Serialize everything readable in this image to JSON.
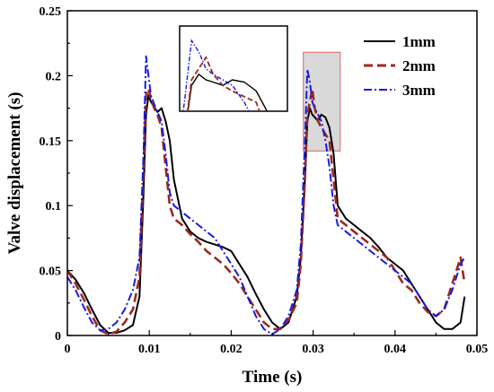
{
  "chart_data": {
    "type": "line",
    "xlabel": "Time (s)",
    "ylabel": "Valve displacement (s)",
    "xlim": [
      0,
      0.05
    ],
    "ylim": [
      0,
      0.25
    ],
    "xticks": [
      "0",
      "0.01",
      "0.02",
      "0.03",
      "0.04",
      "0.05"
    ],
    "yticks": [
      "0",
      "0.05",
      "0.1",
      "0.15",
      "0.2",
      "0.25"
    ],
    "grid": false,
    "legend_position": "top-right",
    "highlight_region": {
      "x": [
        0.0288,
        0.0333
      ],
      "y": [
        0.142,
        0.218
      ]
    },
    "series": [
      {
        "name": "1mm",
        "color": "#000000",
        "dash": "solid",
        "x": [
          0,
          0.001,
          0.002,
          0.003,
          0.004,
          0.005,
          0.006,
          0.007,
          0.008,
          0.0088,
          0.0093,
          0.0096,
          0.0099,
          0.0102,
          0.0106,
          0.011,
          0.0115,
          0.012,
          0.0125,
          0.013,
          0.014,
          0.015,
          0.016,
          0.017,
          0.018,
          0.019,
          0.02,
          0.021,
          0.022,
          0.023,
          0.024,
          0.025,
          0.026,
          0.027,
          0.028,
          0.0285,
          0.029,
          0.0293,
          0.0296,
          0.0299,
          0.0302,
          0.0306,
          0.031,
          0.0315,
          0.032,
          0.0325,
          0.033,
          0.034,
          0.035,
          0.036,
          0.037,
          0.038,
          0.039,
          0.04,
          0.041,
          0.042,
          0.043,
          0.044,
          0.045,
          0.046,
          0.047,
          0.048,
          0.0485
        ],
        "y": [
          0.05,
          0.043,
          0.033,
          0.02,
          0.008,
          0.002,
          0.002,
          0.004,
          0.008,
          0.03,
          0.11,
          0.17,
          0.185,
          0.18,
          0.176,
          0.172,
          0.175,
          0.165,
          0.15,
          0.12,
          0.09,
          0.08,
          0.075,
          0.072,
          0.07,
          0.068,
          0.065,
          0.055,
          0.045,
          0.032,
          0.02,
          0.01,
          0.005,
          0.01,
          0.03,
          0.06,
          0.12,
          0.165,
          0.175,
          0.17,
          0.168,
          0.165,
          0.17,
          0.168,
          0.16,
          0.14,
          0.1,
          0.09,
          0.085,
          0.08,
          0.075,
          0.068,
          0.06,
          0.055,
          0.05,
          0.04,
          0.03,
          0.02,
          0.01,
          0.005,
          0.005,
          0.01,
          0.03
        ]
      },
      {
        "name": "2mm",
        "color": "#9c2a1f",
        "dash": "long",
        "x": [
          0,
          0.001,
          0.002,
          0.003,
          0.004,
          0.005,
          0.006,
          0.007,
          0.008,
          0.0088,
          0.0093,
          0.0096,
          0.0099,
          0.0102,
          0.0106,
          0.011,
          0.0115,
          0.012,
          0.0125,
          0.013,
          0.014,
          0.015,
          0.016,
          0.017,
          0.018,
          0.019,
          0.02,
          0.021,
          0.022,
          0.023,
          0.024,
          0.025,
          0.026,
          0.027,
          0.028,
          0.0285,
          0.029,
          0.0293,
          0.0296,
          0.0299,
          0.0302,
          0.0306,
          0.031,
          0.0315,
          0.032,
          0.0325,
          0.033,
          0.034,
          0.035,
          0.036,
          0.037,
          0.038,
          0.039,
          0.04,
          0.041,
          0.042,
          0.043,
          0.044,
          0.045,
          0.046,
          0.047,
          0.048,
          0.0485
        ],
        "y": [
          0.05,
          0.04,
          0.028,
          0.015,
          0.004,
          0.001,
          0.003,
          0.01,
          0.02,
          0.045,
          0.13,
          0.185,
          0.19,
          0.182,
          0.175,
          0.17,
          0.16,
          0.13,
          0.1,
          0.09,
          0.085,
          0.078,
          0.072,
          0.065,
          0.06,
          0.055,
          0.048,
          0.04,
          0.03,
          0.02,
          0.01,
          0.005,
          0.005,
          0.012,
          0.025,
          0.055,
          0.12,
          0.17,
          0.18,
          0.19,
          0.175,
          0.165,
          0.16,
          0.155,
          0.15,
          0.12,
          0.09,
          0.085,
          0.08,
          0.075,
          0.07,
          0.065,
          0.06,
          0.05,
          0.04,
          0.035,
          0.025,
          0.018,
          0.015,
          0.02,
          0.04,
          0.06,
          0.04
        ]
      },
      {
        "name": "3mm",
        "color": "#1a1adf",
        "dash": "dashdot",
        "x": [
          0,
          0.001,
          0.002,
          0.003,
          0.004,
          0.005,
          0.006,
          0.007,
          0.008,
          0.0088,
          0.0093,
          0.0096,
          0.0099,
          0.0102,
          0.0106,
          0.011,
          0.0115,
          0.012,
          0.0125,
          0.013,
          0.014,
          0.015,
          0.016,
          0.017,
          0.018,
          0.019,
          0.02,
          0.021,
          0.022,
          0.023,
          0.024,
          0.025,
          0.026,
          0.027,
          0.028,
          0.0285,
          0.029,
          0.0293,
          0.0296,
          0.0299,
          0.0302,
          0.0306,
          0.031,
          0.0315,
          0.032,
          0.0325,
          0.033,
          0.034,
          0.035,
          0.036,
          0.037,
          0.038,
          0.039,
          0.04,
          0.041,
          0.042,
          0.043,
          0.044,
          0.045,
          0.046,
          0.047,
          0.048,
          0.0485
        ],
        "y": [
          0.045,
          0.035,
          0.022,
          0.01,
          0.004,
          0.005,
          0.01,
          0.02,
          0.035,
          0.06,
          0.14,
          0.215,
          0.2,
          0.185,
          0.178,
          0.172,
          0.165,
          0.14,
          0.11,
          0.1,
          0.095,
          0.09,
          0.085,
          0.08,
          0.075,
          0.065,
          0.055,
          0.045,
          0.03,
          0.015,
          0.005,
          0.001,
          0.005,
          0.015,
          0.035,
          0.07,
          0.15,
          0.205,
          0.195,
          0.18,
          0.175,
          0.17,
          0.165,
          0.15,
          0.13,
          0.1,
          0.085,
          0.08,
          0.075,
          0.07,
          0.065,
          0.06,
          0.055,
          0.05,
          0.045,
          0.04,
          0.03,
          0.02,
          0.015,
          0.02,
          0.035,
          0.055,
          0.06
        ]
      }
    ],
    "inset": {
      "x": [
        0.0288,
        0.0333
      ],
      "y": [
        0.142,
        0.218
      ]
    }
  }
}
